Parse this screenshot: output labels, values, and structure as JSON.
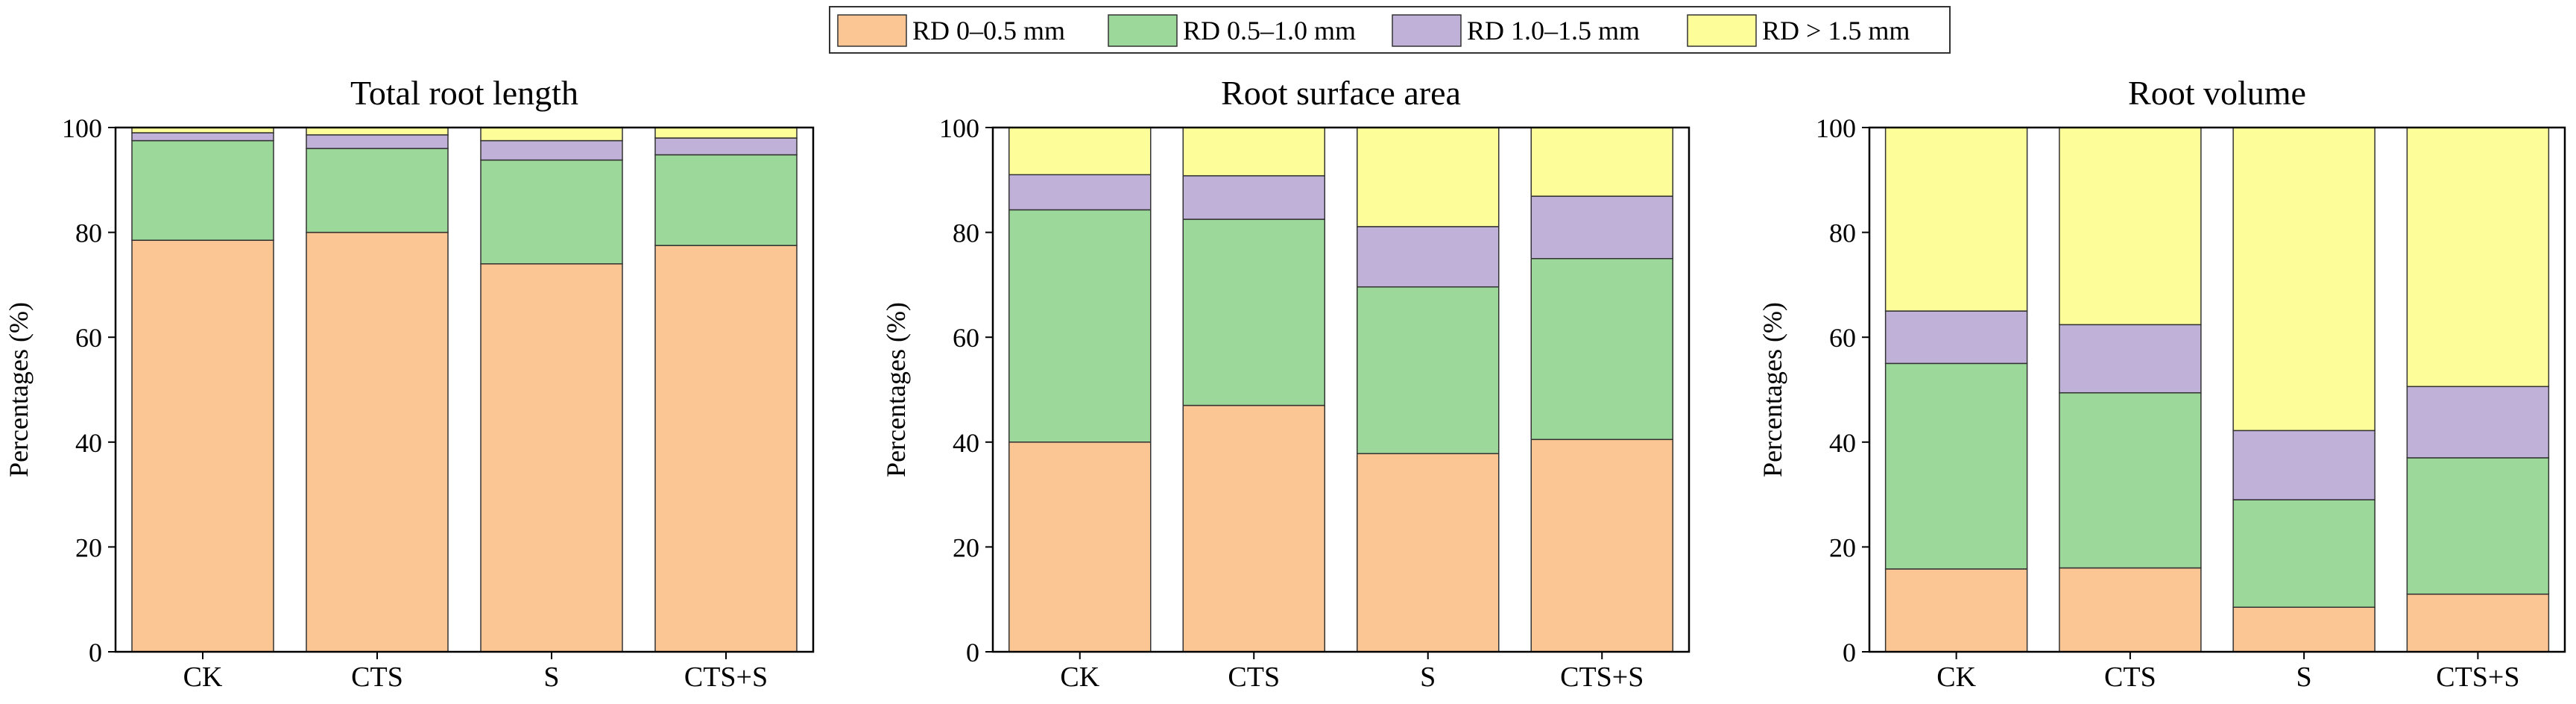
{
  "legend": {
    "position": "top-center",
    "entries": [
      {
        "label": "RD 0–0.5 mm",
        "color": "#FBC594"
      },
      {
        "label": "RD 0.5–1.0 mm",
        "color": "#9DD89B"
      },
      {
        "label": "RD 1.0–1.5 mm",
        "color": "#C0B1D9"
      },
      {
        "label": "RD > 1.5 mm",
        "color": "#FDFD99"
      }
    ]
  },
  "chart_data": [
    {
      "type": "bar",
      "stacked": true,
      "title": "Total root length",
      "ylabel": "Percentages (%)",
      "xlabel": "",
      "ylim": [
        0,
        100
      ],
      "yticks": [
        "0",
        "20",
        "40",
        "60",
        "80",
        "100"
      ],
      "categories": [
        "CK",
        "CTS",
        "S",
        "CTS+S"
      ],
      "series": [
        {
          "name": "RD 0–0.5 mm",
          "values": [
            78.5,
            80.0,
            74.0,
            77.5
          ]
        },
        {
          "name": "RD 0.5–1.0 mm",
          "values": [
            19.0,
            16.0,
            19.8,
            17.3
          ]
        },
        {
          "name": "RD 1.0–1.5 mm",
          "values": [
            1.5,
            2.6,
            3.7,
            3.2
          ]
        },
        {
          "name": "RD > 1.5 mm",
          "values": [
            1.0,
            1.4,
            2.5,
            2.0
          ]
        }
      ]
    },
    {
      "type": "bar",
      "stacked": true,
      "title": "Root surface area",
      "ylabel": "Percentages (%)",
      "xlabel": "",
      "ylim": [
        0,
        100
      ],
      "yticks": [
        "0",
        "20",
        "40",
        "60",
        "80",
        "100"
      ],
      "categories": [
        "CK",
        "CTS",
        "S",
        "CTS+S"
      ],
      "series": [
        {
          "name": "RD 0–0.5 mm",
          "values": [
            40.0,
            47.0,
            37.8,
            40.5
          ]
        },
        {
          "name": "RD 0.5–1.0 mm",
          "values": [
            44.3,
            35.5,
            31.8,
            34.5
          ]
        },
        {
          "name": "RD 1.0–1.5 mm",
          "values": [
            6.7,
            8.3,
            11.5,
            11.9
          ]
        },
        {
          "name": "RD > 1.5 mm",
          "values": [
            9.0,
            9.2,
            18.9,
            13.1
          ]
        }
      ]
    },
    {
      "type": "bar",
      "stacked": true,
      "title": "Root volume",
      "ylabel": "Percentages (%)",
      "xlabel": "",
      "ylim": [
        0,
        100
      ],
      "yticks": [
        "0",
        "20",
        "40",
        "60",
        "80",
        "100"
      ],
      "categories": [
        "CK",
        "CTS",
        "S",
        "CTS+S"
      ],
      "series": [
        {
          "name": "RD 0–0.5 mm",
          "values": [
            15.8,
            16.0,
            8.5,
            11.0
          ]
        },
        {
          "name": "RD 0.5–1.0 mm",
          "values": [
            39.2,
            33.4,
            20.5,
            26.0
          ]
        },
        {
          "name": "RD 1.0–1.5 mm",
          "values": [
            10.0,
            13.0,
            13.2,
            13.6
          ]
        },
        {
          "name": "RD > 1.5 mm",
          "values": [
            35.0,
            37.6,
            57.8,
            49.4
          ]
        }
      ]
    }
  ]
}
